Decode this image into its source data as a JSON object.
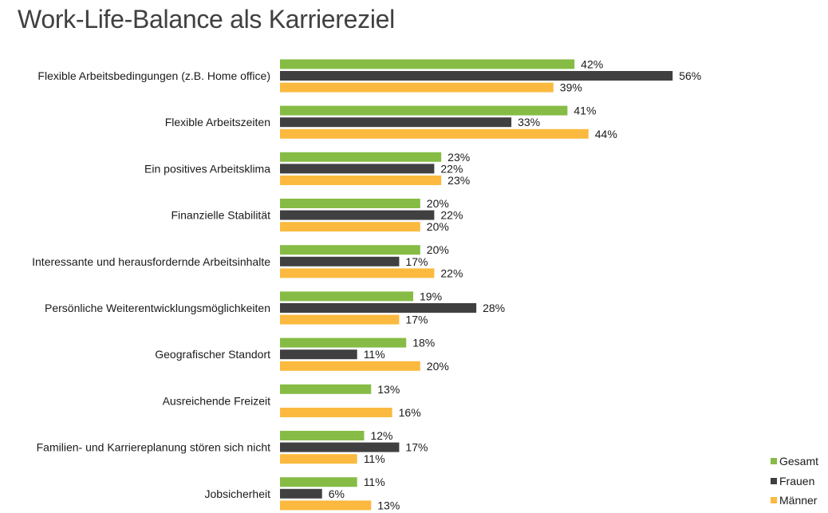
{
  "chart_data": {
    "type": "bar",
    "orientation": "horizontal",
    "title": "Work-Life-Balance als Karriereziel",
    "xlabel": "",
    "ylabel": "",
    "xlim": [
      0,
      60
    ],
    "grid": false,
    "legend_position": "bottom-right",
    "value_suffix": "%",
    "categories": [
      "Flexible Arbeitsbedingungen (z.B. Home office)",
      "Flexible Arbeitszeiten",
      "Ein positives Arbeitsklima",
      "Finanzielle Stabilität",
      "Interessante und herausfordernde Arbeitsinhalte",
      "Persönliche Weiterentwicklungsmöglichkeiten",
      "Geografischer Standort",
      "Ausreichende Freizeit",
      "Familien- und Karriereplanung stören sich nicht",
      "Jobsicherheit"
    ],
    "series": [
      {
        "name": "Gesamt",
        "color": "#86BC45",
        "values": [
          42,
          41,
          23,
          20,
          20,
          19,
          18,
          13,
          12,
          11
        ]
      },
      {
        "name": "Frauen",
        "color": "#404040",
        "values": [
          56,
          33,
          22,
          22,
          17,
          28,
          11,
          null,
          17,
          6
        ]
      },
      {
        "name": "Männer",
        "color": "#FBBA3F",
        "values": [
          39,
          44,
          23,
          20,
          22,
          17,
          20,
          16,
          11,
          13
        ]
      }
    ]
  }
}
